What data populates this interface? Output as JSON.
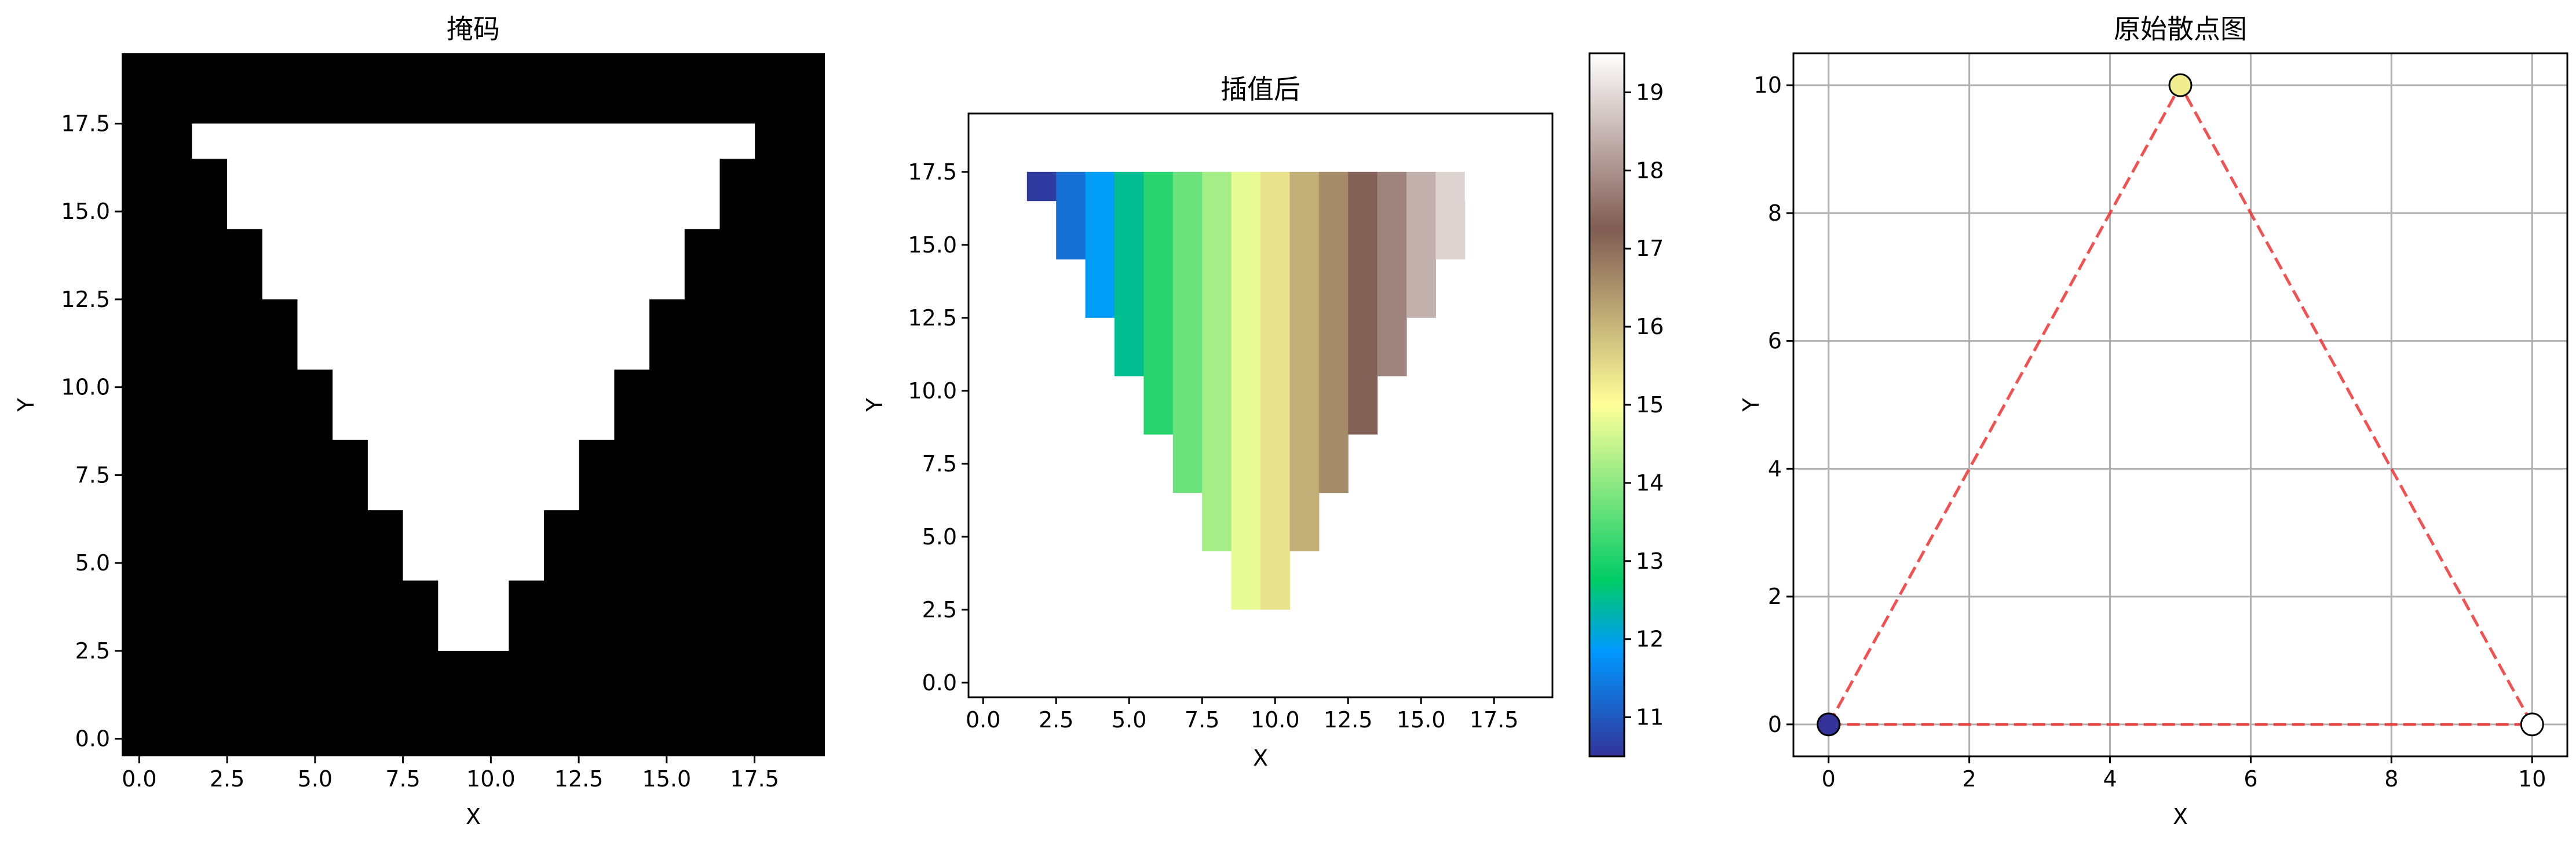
{
  "chart_data": [
    {
      "type": "heatmap",
      "title": "掩码",
      "xlabel": "X",
      "ylabel": "Y",
      "xlim": [
        -0.5,
        19.5
      ],
      "ylim": [
        -0.5,
        19.5
      ],
      "xticks": [
        "0.0",
        "2.5",
        "5.0",
        "7.5",
        "10.0",
        "12.5",
        "15.0",
        "17.5"
      ],
      "yticks": [
        "0.0",
        "2.5",
        "5.0",
        "7.5",
        "10.0",
        "12.5",
        "15.0",
        "17.5"
      ],
      "colormap": "gray",
      "background_color": "#000000",
      "fill_color": "#ffffff",
      "columns": [
        {
          "x": 2,
          "y_min": 17,
          "y_max": 17
        },
        {
          "x": 3,
          "y_min": 15,
          "y_max": 17
        },
        {
          "x": 4,
          "y_min": 13,
          "y_max": 17
        },
        {
          "x": 5,
          "y_min": 11,
          "y_max": 17
        },
        {
          "x": 6,
          "y_min": 9,
          "y_max": 17
        },
        {
          "x": 7,
          "y_min": 7,
          "y_max": 17
        },
        {
          "x": 8,
          "y_min": 5,
          "y_max": 17
        },
        {
          "x": 9,
          "y_min": 3,
          "y_max": 17
        },
        {
          "x": 10,
          "y_min": 3,
          "y_max": 17
        },
        {
          "x": 11,
          "y_min": 5,
          "y_max": 17
        },
        {
          "x": 12,
          "y_min": 7,
          "y_max": 17
        },
        {
          "x": 13,
          "y_min": 9,
          "y_max": 17
        },
        {
          "x": 14,
          "y_min": 11,
          "y_max": 17
        },
        {
          "x": 15,
          "y_min": 13,
          "y_max": 17
        },
        {
          "x": 16,
          "y_min": 15,
          "y_max": 17
        },
        {
          "x": 17,
          "y_min": 17,
          "y_max": 17
        }
      ]
    },
    {
      "type": "heatmap",
      "title": "插值后",
      "xlabel": "X",
      "ylabel": "Y",
      "xlim": [
        -0.5,
        19.5
      ],
      "ylim": [
        -0.5,
        19.5
      ],
      "xticks": [
        "0.0",
        "2.5",
        "5.0",
        "7.5",
        "10.0",
        "12.5",
        "15.0",
        "17.5"
      ],
      "yticks": [
        "0.0",
        "2.5",
        "5.0",
        "7.5",
        "10.0",
        "12.5",
        "15.0",
        "17.5"
      ],
      "colormap": "terrain",
      "colorbar": {
        "min": 10.5,
        "max": 19.5,
        "ticks": [
          "11",
          "12",
          "13",
          "14",
          "15",
          "16",
          "17",
          "18",
          "19"
        ]
      },
      "columns": [
        {
          "x": 2,
          "y_min": 17,
          "y_max": 17,
          "value": 10.6
        },
        {
          "x": 3,
          "y_min": 15,
          "y_max": 17,
          "value": 11.3
        },
        {
          "x": 4,
          "y_min": 13,
          "y_max": 17,
          "value": 11.9
        },
        {
          "x": 5,
          "y_min": 11,
          "y_max": 17,
          "value": 12.5
        },
        {
          "x": 6,
          "y_min": 9,
          "y_max": 17,
          "value": 13.1
        },
        {
          "x": 7,
          "y_min": 7,
          "y_max": 17,
          "value": 13.7
        },
        {
          "x": 8,
          "y_min": 5,
          "y_max": 17,
          "value": 14.2
        },
        {
          "x": 9,
          "y_min": 3,
          "y_max": 17,
          "value": 14.8
        },
        {
          "x": 10,
          "y_min": 3,
          "y_max": 17,
          "value": 15.4
        },
        {
          "x": 11,
          "y_min": 5,
          "y_max": 17,
          "value": 16.1
        },
        {
          "x": 12,
          "y_min": 7,
          "y_max": 17,
          "value": 16.6
        },
        {
          "x": 13,
          "y_min": 9,
          "y_max": 17,
          "value": 17.2
        },
        {
          "x": 14,
          "y_min": 11,
          "y_max": 17,
          "value": 17.8
        },
        {
          "x": 15,
          "y_min": 13,
          "y_max": 17,
          "value": 18.4
        },
        {
          "x": 16,
          "y_min": 15,
          "y_max": 17,
          "value": 18.9
        },
        {
          "x": 17,
          "y_min": 17,
          "y_max": 17,
          "value": 19.5
        }
      ]
    },
    {
      "type": "scatter",
      "title": "原始散点图",
      "xlabel": "X",
      "ylabel": "Y",
      "xlim": [
        -0.5,
        10.5
      ],
      "ylim": [
        -0.5,
        10.5
      ],
      "xticks": [
        "0",
        "2",
        "4",
        "6",
        "8",
        "10"
      ],
      "yticks": [
        "0",
        "2",
        "4",
        "6",
        "8",
        "10"
      ],
      "grid": true,
      "points": [
        {
          "x": 0,
          "y": 0,
          "value": 11,
          "color": "#333399"
        },
        {
          "x": 5,
          "y": 10,
          "value": 15,
          "color": "#f1ee8f"
        },
        {
          "x": 10,
          "y": 0,
          "value": 19,
          "color": "#ffffff"
        }
      ],
      "polygon": {
        "color": "#ee3333",
        "style": "dashed",
        "vertices": [
          [
            0,
            0
          ],
          [
            5,
            10
          ],
          [
            10,
            0
          ]
        ]
      }
    }
  ]
}
